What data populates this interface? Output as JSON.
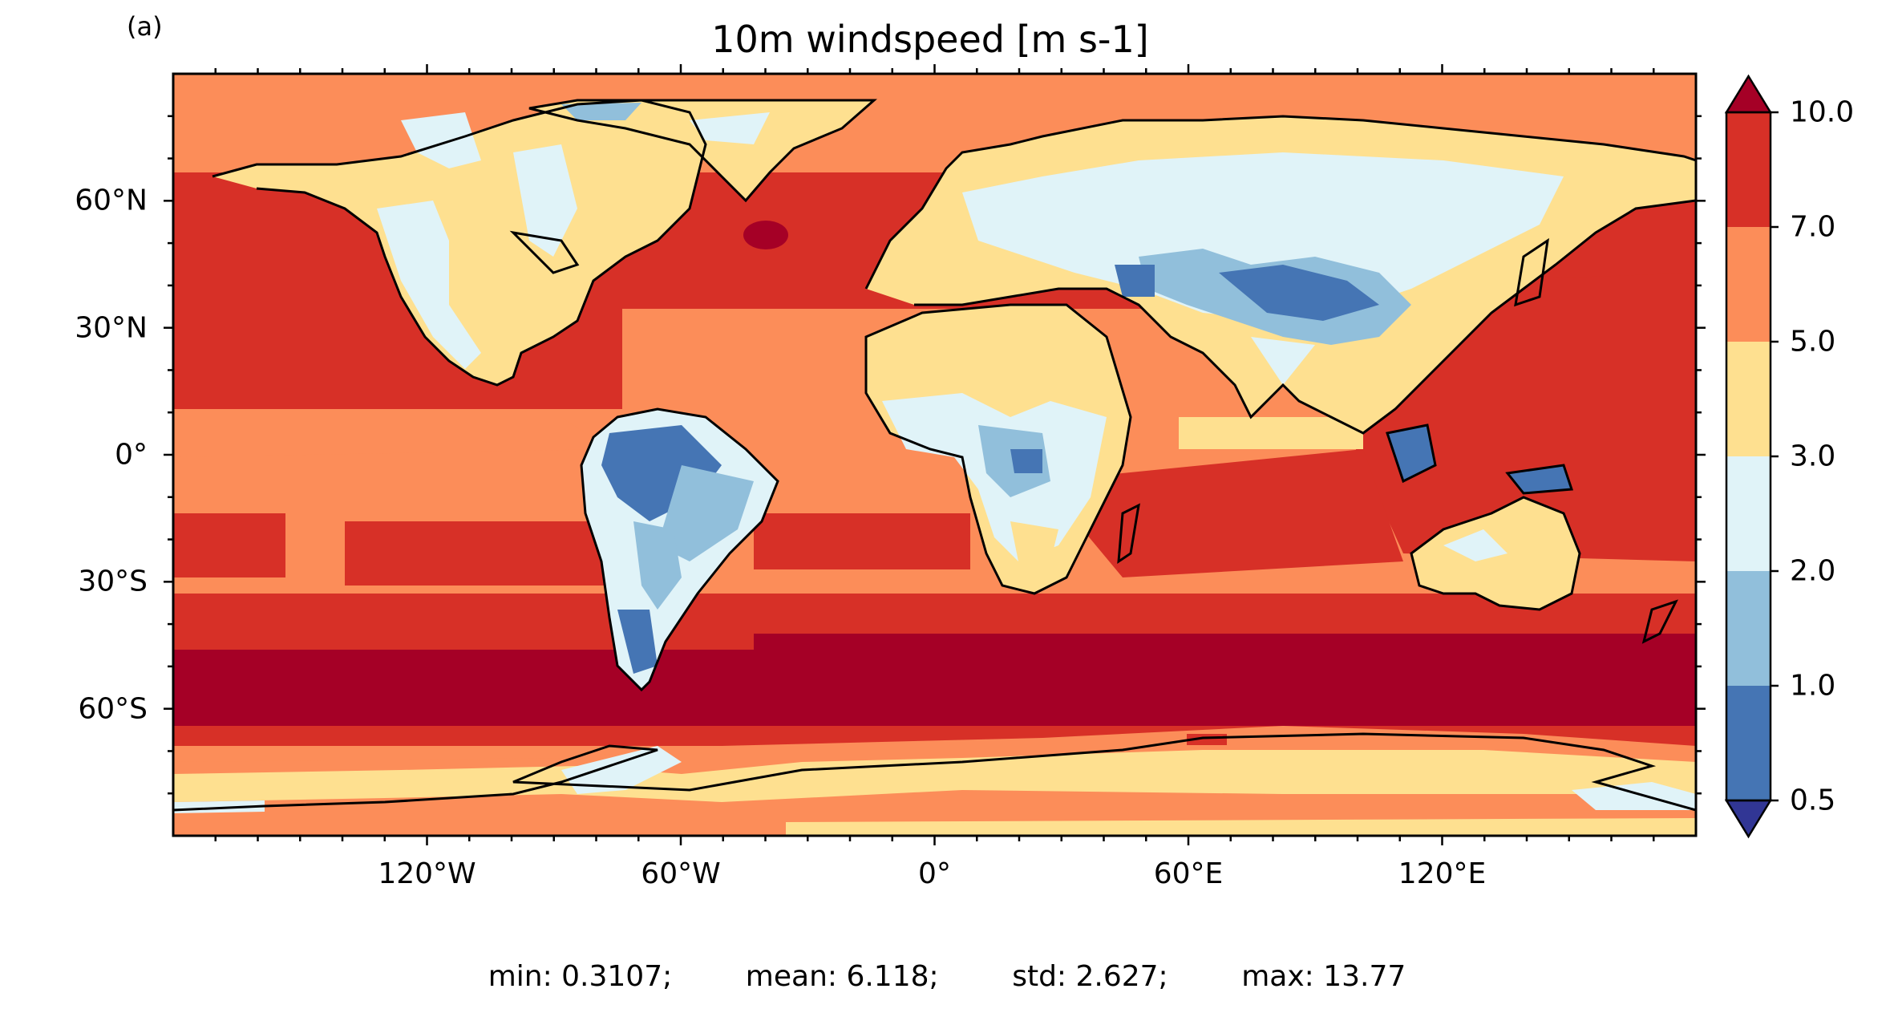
{
  "panel_label": "(a)",
  "title": "10m windspeed [m s-1]",
  "stats": {
    "min": "min: 0.3107;",
    "mean": "mean: 6.118;",
    "std": "std: 2.627;",
    "max": "max: 13.77"
  },
  "map": {
    "projection": "PlateCarree",
    "extent_lon": [
      -180,
      180
    ],
    "extent_lat": [
      -90,
      90
    ],
    "lat_ticks": [
      {
        "value": 60,
        "label": "60°N"
      },
      {
        "value": 30,
        "label": "30°N"
      },
      {
        "value": 0,
        "label": "0°"
      },
      {
        "value": -30,
        "label": "30°S"
      },
      {
        "value": -60,
        "label": "60°S"
      }
    ],
    "lon_ticks": [
      {
        "value": -120,
        "label": "120°W"
      },
      {
        "value": -60,
        "label": "60°W"
      },
      {
        "value": 0,
        "label": "0°"
      },
      {
        "value": 60,
        "label": "60°E"
      },
      {
        "value": 120,
        "label": "120°E"
      }
    ],
    "coastlines": true
  },
  "colorbar": {
    "extend": "both",
    "boundaries": [
      "0.5",
      "1.0",
      "2.0",
      "3.0",
      "5.0",
      "7.0",
      "10.0"
    ],
    "colors": [
      "#4575b4",
      "#91bfdb",
      "#e0f3f8",
      "#fee090",
      "#fc8d59",
      "#d73027"
    ],
    "under_color": "#313695",
    "over_color": "#a50026"
  }
}
